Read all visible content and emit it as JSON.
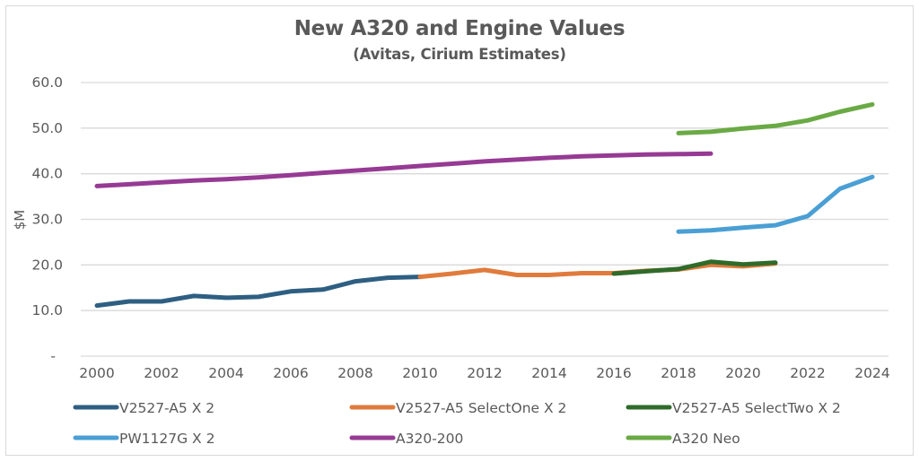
{
  "chart_data": {
    "type": "line",
    "title": "New A320 and Engine Values",
    "subtitle": "(Avitas, Cirium Estimates)",
    "xlabel": "",
    "ylabel": "$M",
    "xlim": [
      2000,
      2024
    ],
    "ylim": [
      0,
      60
    ],
    "x_ticks": [
      2000,
      2002,
      2004,
      2006,
      2008,
      2010,
      2012,
      2014,
      2016,
      2018,
      2020,
      2022,
      2024
    ],
    "y_ticks": [
      0,
      10,
      20,
      30,
      40,
      50,
      60
    ],
    "y_tick_labels": [
      "-",
      "10.0",
      "20.0",
      "30.0",
      "40.0",
      "50.0",
      "60.0"
    ],
    "grid": "horizontal",
    "legend_position": "bottom",
    "series": [
      {
        "name": "V2527-A5 X 2",
        "color": "#2e5f82",
        "x": [
          2000,
          2001,
          2002,
          2003,
          2004,
          2005,
          2006,
          2007,
          2008,
          2009,
          2010
        ],
        "values": [
          11.1,
          12.0,
          12.0,
          13.2,
          12.8,
          13.0,
          14.2,
          14.6,
          16.4,
          17.2,
          17.4
        ]
      },
      {
        "name": "V2527-A5 SelectOne X 2",
        "color": "#e07b3c",
        "x": [
          2010,
          2011,
          2012,
          2013,
          2014,
          2015,
          2016,
          2017,
          2018,
          2019,
          2020,
          2021
        ],
        "values": [
          17.4,
          18.1,
          18.9,
          17.8,
          17.8,
          18.2,
          18.2,
          18.7,
          19.0,
          20.0,
          19.7,
          20.3
        ]
      },
      {
        "name": "V2527-A5 SelectTwo X 2",
        "color": "#2f6b2a",
        "x": [
          2016,
          2017,
          2018,
          2019,
          2020,
          2021
        ],
        "values": [
          18.1,
          18.6,
          19.1,
          20.7,
          20.1,
          20.5
        ]
      },
      {
        "name": "PW1127G X 2",
        "color": "#4a9fd4",
        "x": [
          2018,
          2019,
          2020,
          2021,
          2022,
          2023,
          2024
        ],
        "values": [
          27.3,
          27.6,
          28.2,
          28.7,
          30.7,
          36.7,
          39.3
        ]
      },
      {
        "name": "A320-200",
        "color": "#963a94",
        "x": [
          2000,
          2001,
          2002,
          2003,
          2004,
          2005,
          2006,
          2007,
          2008,
          2009,
          2010,
          2011,
          2012,
          2013,
          2014,
          2015,
          2016,
          2017,
          2018,
          2019
        ],
        "values": [
          37.3,
          37.7,
          38.1,
          38.5,
          38.8,
          39.2,
          39.7,
          40.2,
          40.7,
          41.2,
          41.7,
          42.2,
          42.7,
          43.1,
          43.5,
          43.8,
          44.0,
          44.2,
          44.3,
          44.4
        ]
      },
      {
        "name": "A320 Neo",
        "color": "#6aaa45",
        "x": [
          2018,
          2019,
          2020,
          2021,
          2022,
          2023,
          2024
        ],
        "values": [
          48.9,
          49.2,
          49.9,
          50.5,
          51.7,
          53.6,
          55.2
        ]
      }
    ]
  }
}
